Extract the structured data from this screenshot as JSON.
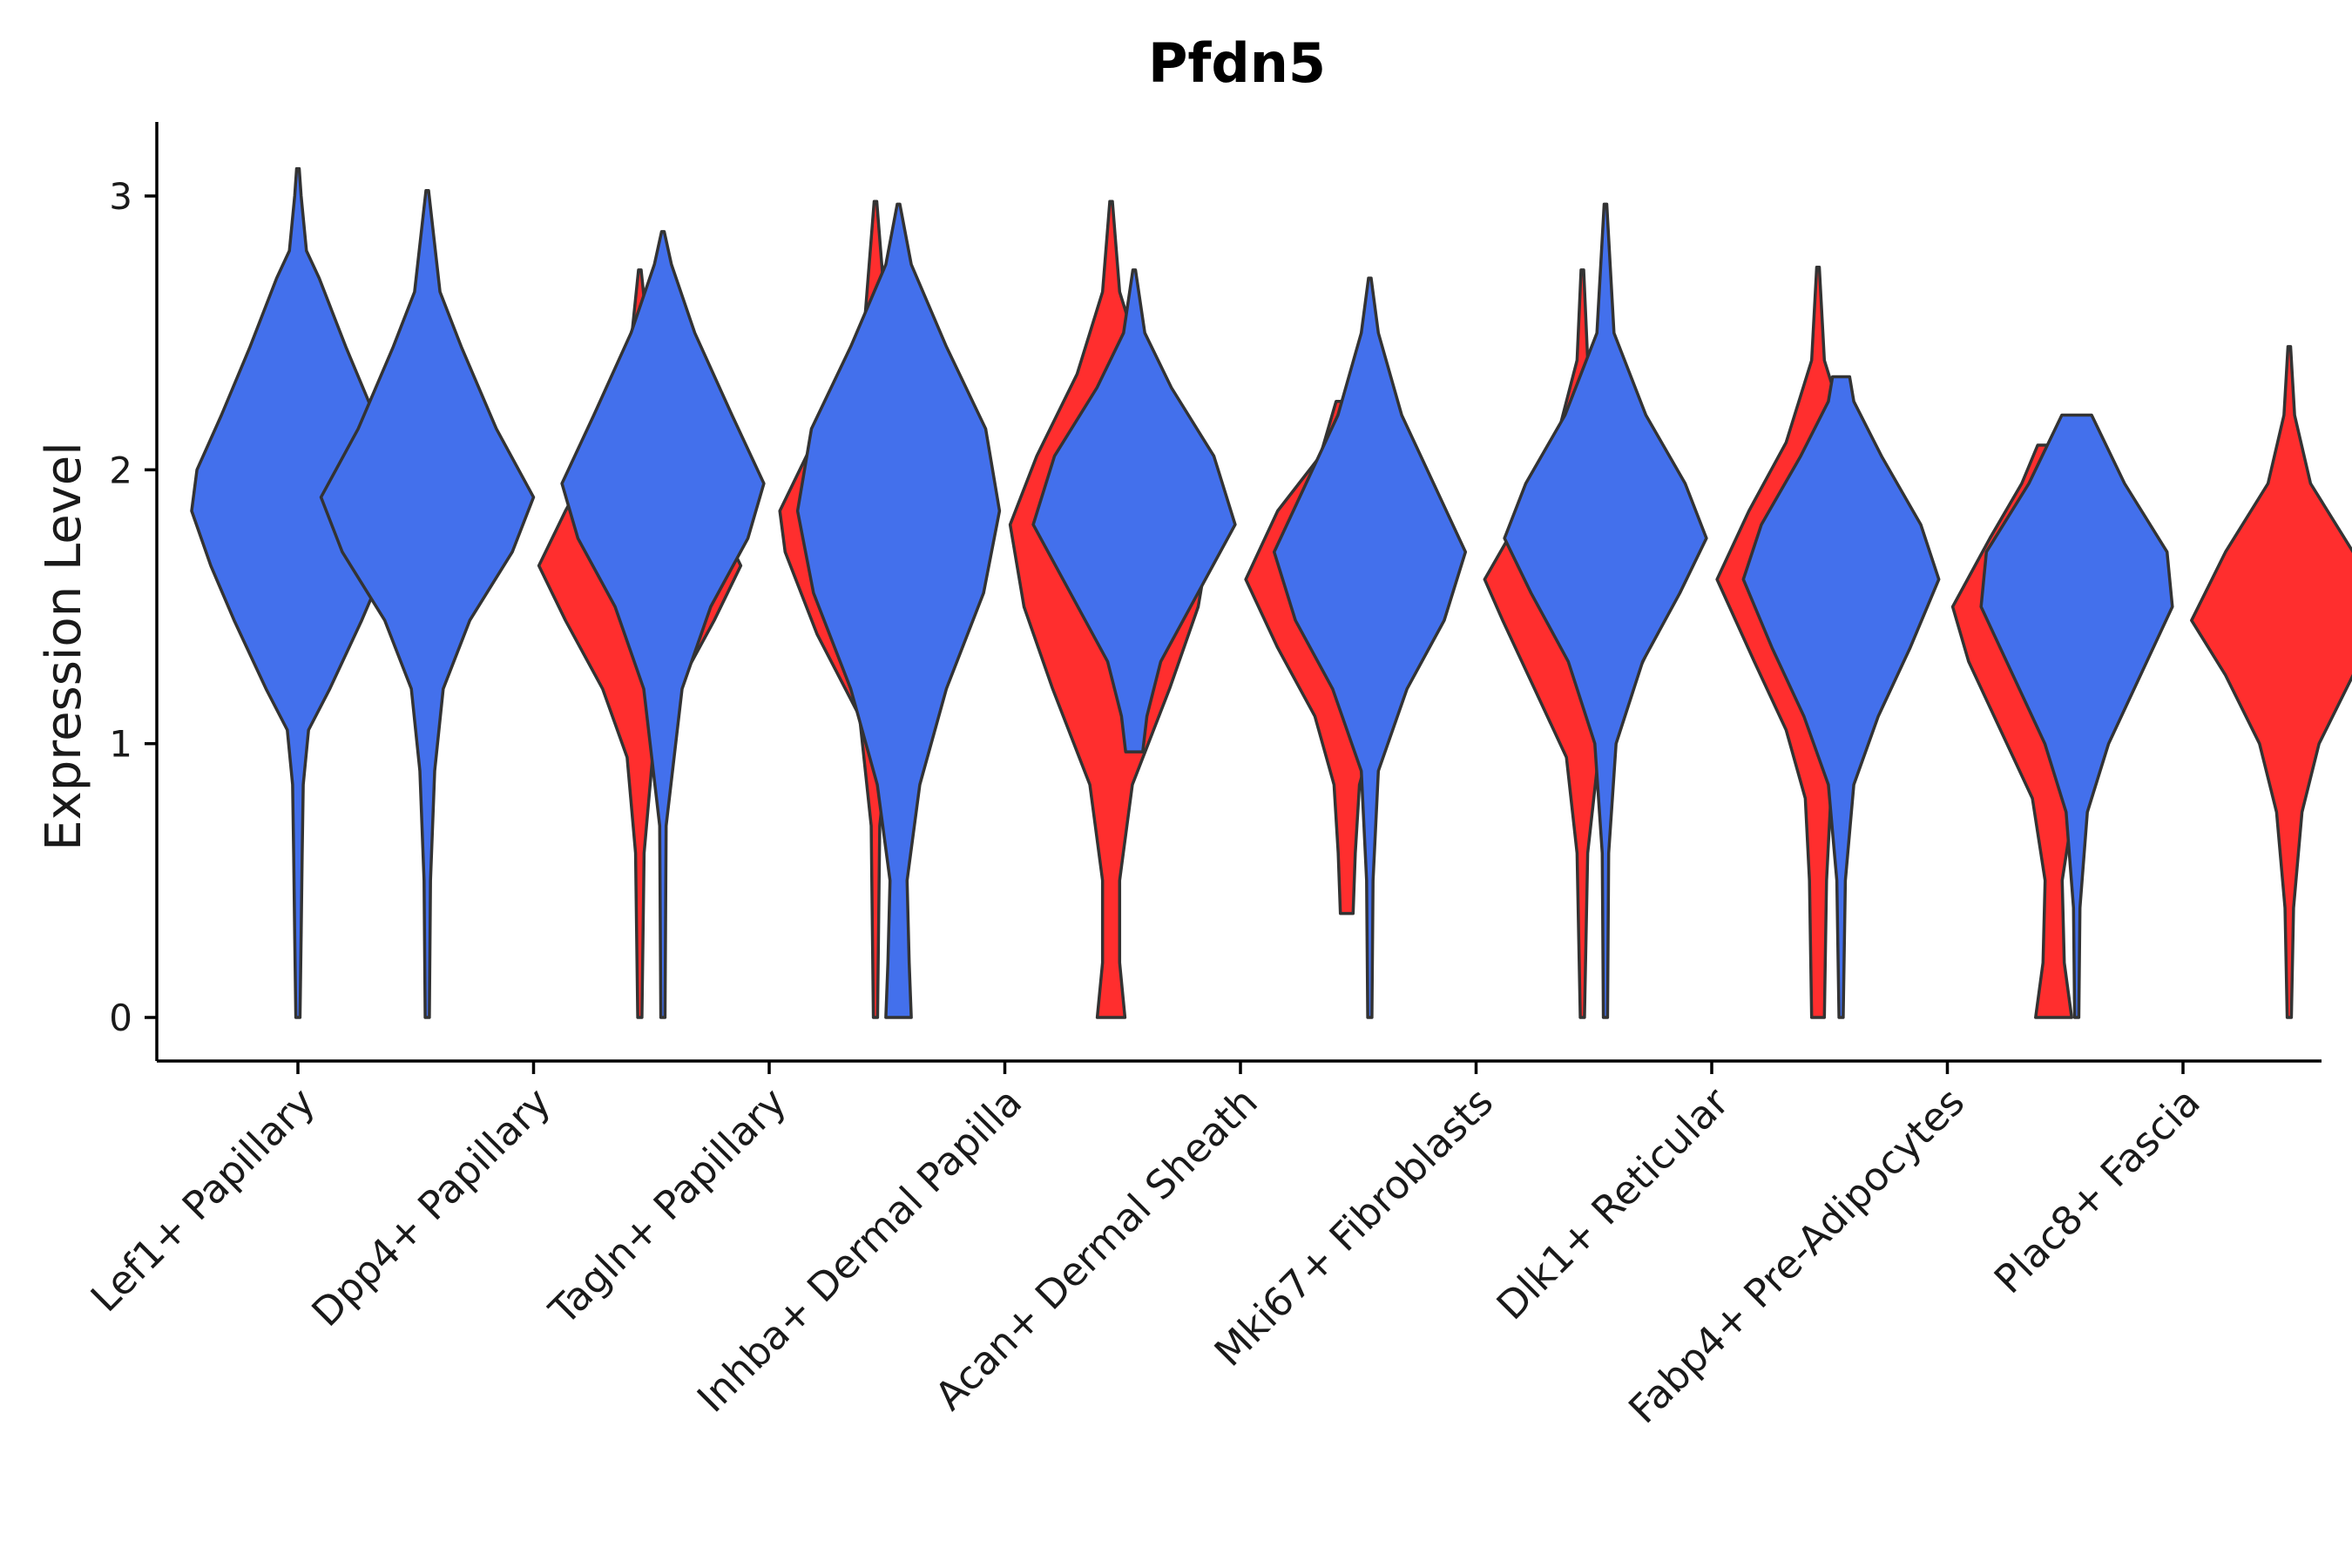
{
  "chart_data": {
    "type": "violin",
    "title": "Pfdn5",
    "xlabel": "",
    "ylabel": "Expression Level",
    "ylim": [
      -0.15,
      3.25
    ],
    "yticks": [
      0,
      1,
      2,
      3
    ],
    "grid": false,
    "legend": "none",
    "categories": [
      "Lef1+ Papillary",
      "Dpp4+ Papillary",
      "Tagln+ Papillary",
      "Inhba+ Dermal Papilla",
      "Acan+ Dermal Sheath",
      "Mki67+ Fibroblasts",
      "Dlk1+ Reticular",
      "Fabp4+ Pre-Adipocytes",
      "Plac8+ Fascia"
    ],
    "groups": [
      {
        "color": "#4370EC"
      },
      {
        "color": "#FF2E2E"
      }
    ],
    "violins": [
      {
        "category": 0,
        "group": 0,
        "min": 0,
        "max": 3.1,
        "profile": [
          [
            0,
            0.02
          ],
          [
            0.3,
            0.03
          ],
          [
            0.6,
            0.04
          ],
          [
            0.85,
            0.05
          ],
          [
            1.05,
            0.1
          ],
          [
            1.2,
            0.3
          ],
          [
            1.45,
            0.6
          ],
          [
            1.65,
            0.82
          ],
          [
            1.85,
            1.0
          ],
          [
            2.0,
            0.95
          ],
          [
            2.2,
            0.72
          ],
          [
            2.45,
            0.45
          ],
          [
            2.7,
            0.2
          ],
          [
            2.8,
            0.08
          ],
          [
            3.0,
            0.03
          ],
          [
            3.1,
            0.01
          ]
        ]
      },
      {
        "category": 1,
        "group": 0,
        "min": 0,
        "max": 3.02,
        "profile": [
          [
            0,
            0.02
          ],
          [
            0.5,
            0.03
          ],
          [
            0.9,
            0.07
          ],
          [
            1.2,
            0.15
          ],
          [
            1.45,
            0.4
          ],
          [
            1.7,
            0.8
          ],
          [
            1.9,
            1.0
          ],
          [
            2.15,
            0.65
          ],
          [
            2.45,
            0.32
          ],
          [
            2.65,
            0.12
          ],
          [
            3.02,
            0.01
          ]
        ]
      },
      {
        "category": 1,
        "group": 1,
        "min": 0,
        "max": 2.73,
        "profile": [
          [
            0,
            0.02
          ],
          [
            0.6,
            0.04
          ],
          [
            0.95,
            0.12
          ],
          [
            1.2,
            0.35
          ],
          [
            1.45,
            0.7
          ],
          [
            1.65,
            0.95
          ],
          [
            1.85,
            0.7
          ],
          [
            2.1,
            0.35
          ],
          [
            2.4,
            0.1
          ],
          [
            2.73,
            0.01
          ]
        ]
      },
      {
        "category": 2,
        "group": 0,
        "min": 0,
        "max": 2.87,
        "profile": [
          [
            0,
            0.02
          ],
          [
            0.7,
            0.03
          ],
          [
            1.2,
            0.18
          ],
          [
            1.5,
            0.45
          ],
          [
            1.75,
            0.8
          ],
          [
            1.95,
            0.95
          ],
          [
            2.2,
            0.65
          ],
          [
            2.5,
            0.3
          ],
          [
            2.75,
            0.08
          ],
          [
            2.87,
            0.01
          ]
        ]
      },
      {
        "category": 2,
        "group": 1,
        "min": 0,
        "max": 2.98,
        "profile": [
          [
            0,
            0.02
          ],
          [
            0.7,
            0.04
          ],
          [
            1.1,
            0.15
          ],
          [
            1.4,
            0.55
          ],
          [
            1.7,
            0.85
          ],
          [
            1.85,
            0.9
          ],
          [
            2.05,
            0.65
          ],
          [
            2.3,
            0.35
          ],
          [
            2.55,
            0.1
          ],
          [
            2.98,
            0.01
          ]
        ]
      },
      {
        "category": 3,
        "group": 0,
        "min": 0,
        "max": 2.97,
        "profile": [
          [
            0,
            0.12
          ],
          [
            0.2,
            0.1
          ],
          [
            0.5,
            0.08
          ],
          [
            0.85,
            0.2
          ],
          [
            1.2,
            0.45
          ],
          [
            1.55,
            0.8
          ],
          [
            1.85,
            0.95
          ],
          [
            2.15,
            0.82
          ],
          [
            2.45,
            0.45
          ],
          [
            2.75,
            0.12
          ],
          [
            2.97,
            0.01
          ]
        ]
      },
      {
        "category": 3,
        "group": 1,
        "min": 0,
        "max": 2.98,
        "profile": [
          [
            0,
            0.13
          ],
          [
            0.2,
            0.08
          ],
          [
            0.5,
            0.08
          ],
          [
            0.85,
            0.2
          ],
          [
            1.2,
            0.55
          ],
          [
            1.5,
            0.82
          ],
          [
            1.8,
            0.95
          ],
          [
            2.05,
            0.7
          ],
          [
            2.35,
            0.32
          ],
          [
            2.65,
            0.08
          ],
          [
            2.98,
            0.01
          ]
        ]
      },
      {
        "category": 4,
        "group": 0,
        "min": 0.97,
        "max": 2.73,
        "profile": [
          [
            0.97,
            0.08
          ],
          [
            1.1,
            0.12
          ],
          [
            1.3,
            0.25
          ],
          [
            1.55,
            0.6
          ],
          [
            1.8,
            0.95
          ],
          [
            2.05,
            0.75
          ],
          [
            2.3,
            0.35
          ],
          [
            2.5,
            0.1
          ],
          [
            2.73,
            0.01
          ]
        ]
      },
      {
        "category": 4,
        "group": 1,
        "min": 0.38,
        "max": 2.25,
        "profile": [
          [
            0.38,
            0.06
          ],
          [
            0.6,
            0.08
          ],
          [
            0.85,
            0.12
          ],
          [
            1.1,
            0.3
          ],
          [
            1.35,
            0.65
          ],
          [
            1.6,
            0.95
          ],
          [
            1.85,
            0.65
          ],
          [
            2.05,
            0.25
          ],
          [
            2.25,
            0.1
          ]
        ]
      },
      {
        "category": 5,
        "group": 0,
        "min": 0,
        "max": 2.7,
        "profile": [
          [
            0,
            0.02
          ],
          [
            0.5,
            0.03
          ],
          [
            0.9,
            0.08
          ],
          [
            1.2,
            0.35
          ],
          [
            1.45,
            0.7
          ],
          [
            1.7,
            0.9
          ],
          [
            1.95,
            0.6
          ],
          [
            2.2,
            0.3
          ],
          [
            2.5,
            0.08
          ],
          [
            2.7,
            0.01
          ]
        ]
      },
      {
        "category": 5,
        "group": 1,
        "min": 0,
        "max": 2.73,
        "profile": [
          [
            0,
            0.02
          ],
          [
            0.6,
            0.05
          ],
          [
            0.95,
            0.15
          ],
          [
            1.2,
            0.45
          ],
          [
            1.45,
            0.75
          ],
          [
            1.6,
            0.92
          ],
          [
            1.85,
            0.55
          ],
          [
            2.1,
            0.25
          ],
          [
            2.4,
            0.05
          ],
          [
            2.73,
            0.01
          ]
        ]
      },
      {
        "category": 6,
        "group": 0,
        "min": 0,
        "max": 2.97,
        "profile": [
          [
            0,
            0.02
          ],
          [
            0.6,
            0.03
          ],
          [
            1.0,
            0.1
          ],
          [
            1.3,
            0.35
          ],
          [
            1.55,
            0.7
          ],
          [
            1.75,
            0.95
          ],
          [
            1.95,
            0.75
          ],
          [
            2.2,
            0.38
          ],
          [
            2.5,
            0.08
          ],
          [
            2.97,
            0.01
          ]
        ]
      },
      {
        "category": 6,
        "group": 1,
        "min": 0,
        "max": 2.74,
        "profile": [
          [
            0,
            0.06
          ],
          [
            0.5,
            0.08
          ],
          [
            0.8,
            0.12
          ],
          [
            1.05,
            0.3
          ],
          [
            1.3,
            0.6
          ],
          [
            1.6,
            0.95
          ],
          [
            1.85,
            0.65
          ],
          [
            2.1,
            0.3
          ],
          [
            2.4,
            0.06
          ],
          [
            2.74,
            0.01
          ]
        ]
      },
      {
        "category": 7,
        "group": 0,
        "min": 0,
        "max": 2.34,
        "profile": [
          [
            0,
            0.02
          ],
          [
            0.5,
            0.04
          ],
          [
            0.85,
            0.12
          ],
          [
            1.1,
            0.35
          ],
          [
            1.35,
            0.65
          ],
          [
            1.6,
            0.92
          ],
          [
            1.8,
            0.75
          ],
          [
            2.05,
            0.38
          ],
          [
            2.25,
            0.12
          ],
          [
            2.34,
            0.08
          ]
        ]
      },
      {
        "category": 7,
        "group": 1,
        "min": 0,
        "max": 2.09,
        "profile": [
          [
            0,
            0.17
          ],
          [
            0.2,
            0.1
          ],
          [
            0.5,
            0.08
          ],
          [
            0.8,
            0.2
          ],
          [
            1.05,
            0.5
          ],
          [
            1.3,
            0.8
          ],
          [
            1.5,
            0.95
          ],
          [
            1.75,
            0.6
          ],
          [
            1.95,
            0.3
          ],
          [
            2.09,
            0.15
          ]
        ]
      },
      {
        "category": 8,
        "group": 0,
        "min": 0,
        "max": 2.2,
        "profile": [
          [
            0,
            0.02
          ],
          [
            0.4,
            0.03
          ],
          [
            0.75,
            0.1
          ],
          [
            1.0,
            0.3
          ],
          [
            1.25,
            0.6
          ],
          [
            1.5,
            0.9
          ],
          [
            1.7,
            0.85
          ],
          [
            1.95,
            0.45
          ],
          [
            2.2,
            0.14
          ]
        ]
      },
      {
        "category": 8,
        "group": 1,
        "min": 0,
        "max": 2.45,
        "profile": [
          [
            0,
            0.02
          ],
          [
            0.4,
            0.04
          ],
          [
            0.75,
            0.12
          ],
          [
            1.0,
            0.28
          ],
          [
            1.25,
            0.6
          ],
          [
            1.45,
            0.92
          ],
          [
            1.7,
            0.6
          ],
          [
            1.95,
            0.2
          ],
          [
            2.2,
            0.05
          ],
          [
            2.45,
            0.01
          ]
        ]
      }
    ]
  }
}
